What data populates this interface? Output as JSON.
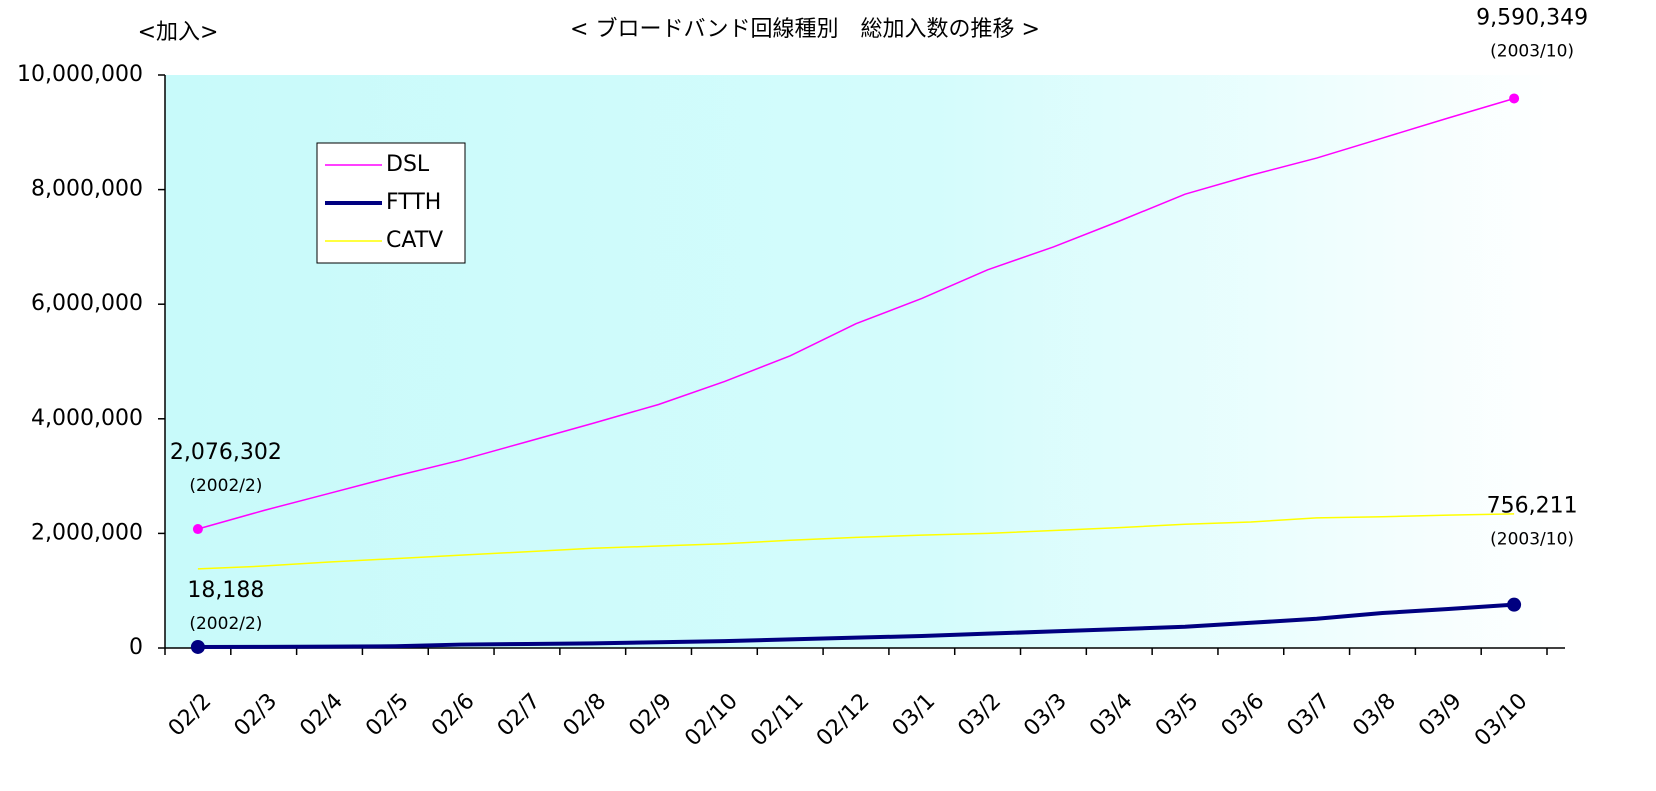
{
  "chart_data": {
    "type": "line",
    "title": "< ブロードバンド回線種別　総加入数の推移 >",
    "y_label": "<加入>",
    "categories": [
      "02/2",
      "02/3",
      "02/4",
      "02/5",
      "02/6",
      "02/7",
      "02/8",
      "02/9",
      "02/10",
      "02/11",
      "02/12",
      "03/1",
      "03/2",
      "03/3",
      "03/4",
      "03/5",
      "03/6",
      "03/7",
      "03/8",
      "03/9",
      "03/10"
    ],
    "series": [
      {
        "name": "DSL",
        "color": "#ff00ff",
        "width": 1.5,
        "values": [
          2076302,
          2400000,
          2700000,
          3000000,
          3280000,
          3600000,
          3920000,
          4250000,
          4650000,
          5100000,
          5660000,
          6100000,
          6600000,
          7000000,
          7450000,
          7920000,
          8250000,
          8550000,
          8900000,
          9250000,
          9590349
        ],
        "value_labels": [
          "2,076,302",
          null,
          null,
          null,
          null,
          null,
          null,
          null,
          null,
          null,
          null,
          null,
          null,
          null,
          null,
          null,
          null,
          null,
          null,
          null,
          "9,590,349"
        ],
        "value_notes": [
          "(2002/2)",
          null,
          null,
          null,
          null,
          null,
          null,
          null,
          null,
          null,
          null,
          null,
          null,
          null,
          null,
          null,
          null,
          null,
          null,
          null,
          "(2003/10)"
        ]
      },
      {
        "name": "FTTH",
        "color": "#000080",
        "width": 4,
        "values": [
          18188,
          20000,
          25000,
          30000,
          60000,
          70000,
          80000,
          100000,
          120000,
          150000,
          180000,
          210000,
          250000,
          290000,
          330000,
          370000,
          440000,
          510000,
          610000,
          680000,
          756211
        ],
        "value_labels": [
          "18,188",
          null,
          null,
          null,
          null,
          null,
          null,
          null,
          null,
          null,
          null,
          null,
          null,
          null,
          null,
          null,
          null,
          null,
          null,
          null,
          "756,211"
        ],
        "value_notes": [
          "(2002/2)",
          null,
          null,
          null,
          null,
          null,
          null,
          null,
          null,
          null,
          null,
          null,
          null,
          null,
          null,
          null,
          null,
          null,
          null,
          null,
          "(2003/10)"
        ]
      },
      {
        "name": "CATV",
        "color": "#ffff00",
        "width": 1.5,
        "values": [
          1380000,
          1430000,
          1500000,
          1560000,
          1620000,
          1680000,
          1740000,
          1780000,
          1820000,
          1880000,
          1930000,
          1970000,
          2000000,
          2050000,
          2100000,
          2160000,
          2200000,
          2270000,
          2290000,
          2320000,
          2340000
        ]
      }
    ],
    "ylim": [
      0,
      10000000
    ],
    "yticks": [
      0,
      {
        "value": 2000000,
        "label": "2,000,000"
      },
      {
        "value": 4000000,
        "label": "4,000,000"
      },
      {
        "value": 6000000,
        "label": "6,000,000"
      },
      {
        "value": 8000000,
        "label": "8,000,000"
      },
      {
        "value": 10000000,
        "label": "10,000,000"
      }
    ],
    "grid": false,
    "legend": "upper-left"
  }
}
